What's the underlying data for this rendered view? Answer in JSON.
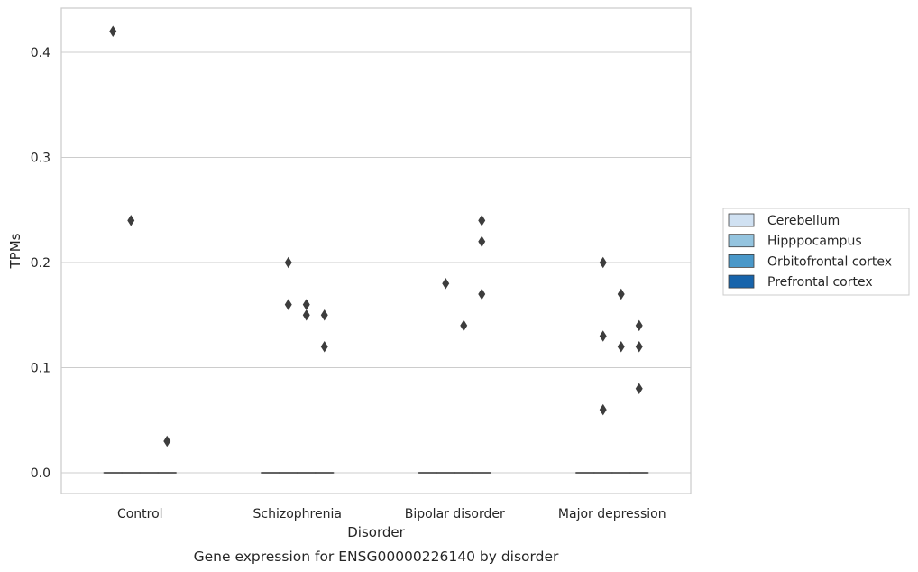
{
  "caption": "Gene expression for ENSG00000226140 by disorder",
  "chart_data": {
    "type": "boxplot",
    "xlabel": "Disorder",
    "ylabel": "TPMs",
    "categories": [
      "Control",
      "Schizophrenia",
      "Bipolar disorder",
      "Major depression"
    ],
    "ylim": [
      -0.02,
      0.44
    ],
    "yticks": [
      0.0,
      0.1,
      0.2,
      0.3,
      0.4
    ],
    "ytick_labels": [
      "0.0",
      "0.1",
      "0.2",
      "0.3",
      "0.4"
    ],
    "grid": "horizontal",
    "legend_position": "right",
    "series": [
      {
        "name": "Cerebellum",
        "color": "#d0e1f2",
        "boxes": [
          {
            "median": 0,
            "q1": 0,
            "q3": 0
          },
          {
            "median": 0,
            "q1": 0,
            "q3": 0
          },
          {
            "median": 0,
            "q1": 0,
            "q3": 0
          },
          {
            "median": 0,
            "q1": 0,
            "q3": 0
          }
        ],
        "outliers": [
          [
            0.42
          ],
          [],
          [],
          []
        ]
      },
      {
        "name": "Hipppocampus",
        "color": "#94c4df",
        "boxes": [
          {
            "median": 0,
            "q1": 0,
            "q3": 0
          },
          {
            "median": 0,
            "q1": 0,
            "q3": 0
          },
          {
            "median": 0,
            "q1": 0,
            "q3": 0
          },
          {
            "median": 0,
            "q1": 0,
            "q3": 0
          }
        ],
        "outliers": [
          [
            0.24
          ],
          [
            0.2,
            0.16
          ],
          [
            0.18
          ],
          [
            0.2,
            0.13,
            0.06
          ]
        ]
      },
      {
        "name": "Orbitofrontal cortex",
        "color": "#4a98c9",
        "boxes": [
          {
            "median": 0,
            "q1": 0,
            "q3": 0
          },
          {
            "median": 0,
            "q1": 0,
            "q3": 0
          },
          {
            "median": 0,
            "q1": 0,
            "q3": 0
          },
          {
            "median": 0,
            "q1": 0,
            "q3": 0
          }
        ],
        "outliers": [
          [],
          [
            0.16,
            0.15
          ],
          [
            0.14
          ],
          [
            0.17,
            0.12
          ]
        ]
      },
      {
        "name": "Prefrontal cortex",
        "color": "#1764ab",
        "boxes": [
          {
            "median": 0,
            "q1": 0,
            "q3": 0
          },
          {
            "median": 0,
            "q1": 0,
            "q3": 0
          },
          {
            "median": 0,
            "q1": 0,
            "q3": 0
          },
          {
            "median": 0,
            "q1": 0,
            "q3": 0
          }
        ],
        "outliers": [
          [
            0.03
          ],
          [
            0.15,
            0.12
          ],
          [
            0.24,
            0.22,
            0.17
          ],
          [
            0.08,
            0.14,
            0.12
          ]
        ]
      }
    ]
  }
}
